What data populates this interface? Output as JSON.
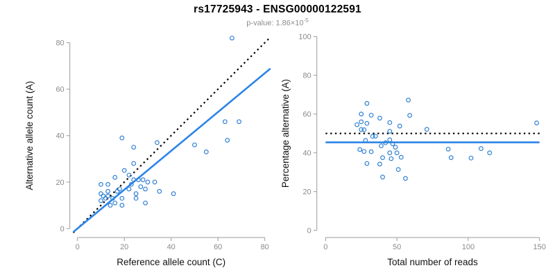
{
  "header": {
    "title": "rs17725943 - ENSG00000122591",
    "pvalue_prefix": "p-value: 1.86×10",
    "pvalue_exponent": "-5"
  },
  "colors": {
    "point": "#3182d4",
    "fit_line": "#2b84e8",
    "identity_line": "#000000",
    "axis": "#9b9b9b",
    "tick_label": "#8a8a8a",
    "axis_title": "#111111",
    "title": "#000000",
    "subtitle": "#8c8c8c"
  },
  "chart_data": [
    {
      "type": "scatter",
      "name": "allele-counts",
      "xlabel": "Reference allele count (C)",
      "ylabel": "Alternative allele count (A)",
      "xlim": [
        0,
        80
      ],
      "ylim": [
        0,
        80
      ],
      "xticks": [
        0,
        20,
        40,
        60,
        80
      ],
      "yticks": [
        0,
        20,
        40,
        60,
        80
      ],
      "grid": false,
      "legend": "none",
      "points": [
        [
          66,
          82
        ],
        [
          19,
          39
        ],
        [
          24,
          35
        ],
        [
          34,
          37
        ],
        [
          50,
          36
        ],
        [
          55,
          33
        ],
        [
          63,
          46
        ],
        [
          69,
          46
        ],
        [
          64,
          38
        ],
        [
          10,
          19
        ],
        [
          13,
          19
        ],
        [
          16,
          22
        ],
        [
          20,
          25
        ],
        [
          24,
          28
        ],
        [
          10,
          15
        ],
        [
          11,
          14
        ],
        [
          13,
          16
        ],
        [
          10,
          12
        ],
        [
          12,
          13
        ],
        [
          13,
          14
        ],
        [
          15,
          13
        ],
        [
          17,
          16
        ],
        [
          18,
          17
        ],
        [
          22,
          23
        ],
        [
          23,
          19
        ],
        [
          24,
          21
        ],
        [
          26,
          21
        ],
        [
          27,
          18
        ],
        [
          28,
          21
        ],
        [
          29,
          17
        ],
        [
          30,
          20
        ],
        [
          33,
          20
        ],
        [
          14,
          10
        ],
        [
          16,
          11
        ],
        [
          19,
          13
        ],
        [
          22,
          17
        ],
        [
          25,
          15
        ],
        [
          19,
          10
        ],
        [
          25,
          13
        ],
        [
          35,
          16
        ],
        [
          29,
          11
        ],
        [
          41,
          15
        ]
      ],
      "lines": [
        {
          "name": "identity",
          "label": "y = x",
          "style": "dotted",
          "slope": 1,
          "intercept": 0,
          "color": "#000000"
        },
        {
          "name": "regression-fit",
          "label": "fit",
          "style": "solid",
          "slope": 0.836,
          "intercept": 0,
          "color": "#2b84e8"
        }
      ]
    },
    {
      "type": "scatter",
      "name": "percentage-vs-coverage",
      "xlabel": "Total number of reads",
      "ylabel": "Percentage alternative (A)",
      "xlim": [
        0,
        150
      ],
      "ylim": [
        0,
        100
      ],
      "xticks": [
        0,
        50,
        100,
        150
      ],
      "yticks": [
        0,
        20,
        40,
        60,
        80,
        100
      ],
      "grid": false,
      "legend": "none",
      "points": [
        [
          148,
          55.4
        ],
        [
          58,
          67.2
        ],
        [
          59,
          59.3
        ],
        [
          71,
          52.1
        ],
        [
          86,
          41.9
        ],
        [
          88,
          37.5
        ],
        [
          109,
          42.2
        ],
        [
          115,
          40.0
        ],
        [
          102,
          37.3
        ],
        [
          29,
          65.5
        ],
        [
          32,
          59.4
        ],
        [
          38,
          57.9
        ],
        [
          45,
          55.6
        ],
        [
          52,
          53.8
        ],
        [
          25,
          60.0
        ],
        [
          25,
          56.0
        ],
        [
          29,
          55.2
        ],
        [
          22,
          54.5
        ],
        [
          25,
          52.0
        ],
        [
          27,
          51.9
        ],
        [
          28,
          46.4
        ],
        [
          33,
          48.5
        ],
        [
          35,
          48.6
        ],
        [
          45,
          51.1
        ],
        [
          42,
          45.2
        ],
        [
          45,
          46.7
        ],
        [
          47,
          44.7
        ],
        [
          45,
          40.0
        ],
        [
          49,
          42.9
        ],
        [
          46,
          37.0
        ],
        [
          50,
          40.0
        ],
        [
          53,
          37.7
        ],
        [
          24,
          41.7
        ],
        [
          27,
          40.7
        ],
        [
          32,
          40.6
        ],
        [
          39,
          43.6
        ],
        [
          40,
          37.5
        ],
        [
          29,
          34.5
        ],
        [
          38,
          34.2
        ],
        [
          51,
          31.4
        ],
        [
          40,
          27.5
        ],
        [
          56,
          26.8
        ]
      ],
      "lines": [
        {
          "name": "expected-50-percent",
          "label": "50%",
          "style": "dotted",
          "slope": 0,
          "intercept": 50,
          "color": "#000000"
        },
        {
          "name": "mean-percentage",
          "label": "mean",
          "style": "solid",
          "slope": 0,
          "intercept": 45.4,
          "color": "#2b84e8"
        }
      ]
    }
  ]
}
